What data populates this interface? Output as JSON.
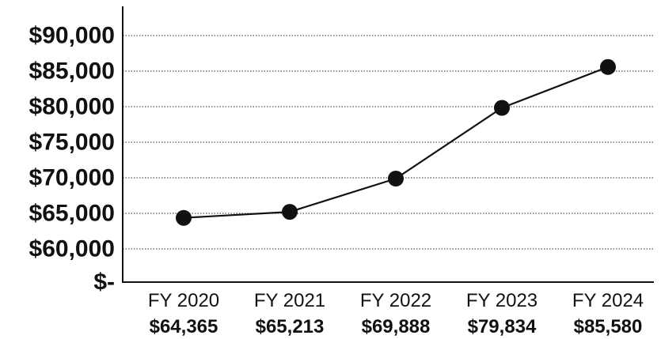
{
  "chart_data": {
    "type": "line",
    "categories": [
      "FY 2020",
      "FY 2021",
      "FY 2022",
      "FY 2023",
      "FY 2024"
    ],
    "series": [
      {
        "values": [
          64365,
          65213,
          69888,
          79834,
          85580
        ]
      }
    ],
    "value_labels": [
      "$64,365",
      "$65,213",
      "$69,888",
      "$79,834",
      "$85,580"
    ],
    "y_tick_labels": [
      "$-",
      "$60,000",
      "$65,000",
      "$70,000",
      "$75,000",
      "$80,000",
      "$85,000",
      "$90,000"
    ],
    "y_tick_values": [
      0,
      60000,
      65000,
      70000,
      75000,
      80000,
      85000,
      90000
    ],
    "y_axis_break": true,
    "ylim": [
      0,
      90000
    ],
    "grid": true,
    "grid_style": "dotted",
    "colors": {
      "line": "#111111",
      "marker": "#111111",
      "grid": "#555555",
      "axis": "#111111"
    },
    "title": "",
    "xlabel": "",
    "ylabel": ""
  }
}
